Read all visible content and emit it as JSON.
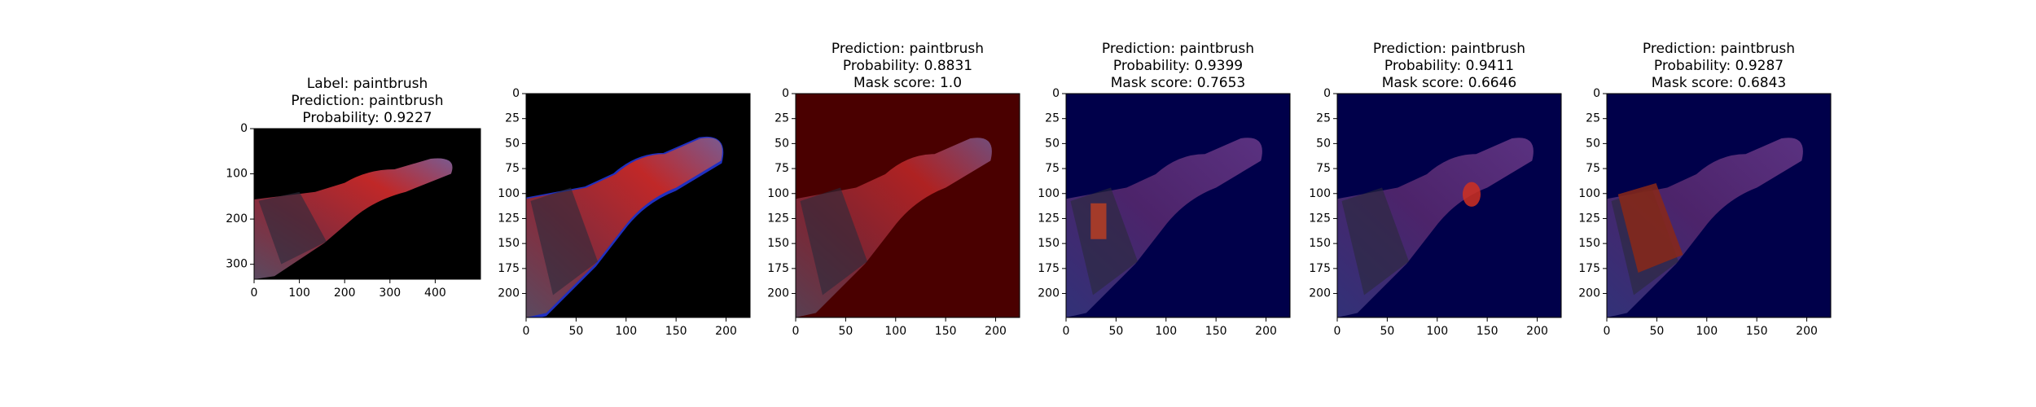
{
  "chart_data": [
    {
      "type": "image",
      "title": [
        "Label: paintbrush",
        "Prediction: paintbrush",
        "Probability: 0.9227"
      ],
      "xlim": [
        0,
        500
      ],
      "ylim": [
        333,
        0
      ],
      "xticks": [
        0,
        100,
        200,
        300,
        400
      ],
      "yticks": [
        0,
        100,
        200,
        300
      ]
    },
    {
      "type": "image",
      "xlim": [
        0,
        224
      ],
      "ylim": [
        224,
        0
      ],
      "xticks": [
        0,
        50,
        100,
        150,
        200
      ],
      "yticks": [
        0,
        25,
        50,
        75,
        100,
        125,
        150,
        175,
        200
      ]
    },
    {
      "type": "image",
      "title": [
        "Prediction: paintbrush",
        "Probability: 0.8831",
        "Mask score: 1.0"
      ],
      "xlim": [
        0,
        224
      ],
      "ylim": [
        224,
        0
      ],
      "xticks": [
        0,
        50,
        100,
        150,
        200
      ],
      "yticks": [
        0,
        25,
        50,
        75,
        100,
        125,
        150,
        175,
        200
      ]
    },
    {
      "type": "image",
      "title": [
        "Prediction: paintbrush",
        "Probability: 0.9399",
        "Mask score: 0.7653"
      ],
      "xlim": [
        0,
        224
      ],
      "ylim": [
        224,
        0
      ],
      "xticks": [
        0,
        50,
        100,
        150,
        200
      ],
      "yticks": [
        0,
        25,
        50,
        75,
        100,
        125,
        150,
        175,
        200
      ]
    },
    {
      "type": "image",
      "title": [
        "Prediction: paintbrush",
        "Probability: 0.9411",
        "Mask score: 0.6646"
      ],
      "xlim": [
        0,
        224
      ],
      "ylim": [
        224,
        0
      ],
      "xticks": [
        0,
        50,
        100,
        150,
        200
      ],
      "yticks": [
        0,
        25,
        50,
        75,
        100,
        125,
        150,
        175,
        200
      ]
    },
    {
      "type": "image",
      "title": [
        "Prediction: paintbrush",
        "Probability: 0.9287",
        "Mask score: 0.6843"
      ],
      "xlim": [
        0,
        224
      ],
      "ylim": [
        224,
        0
      ],
      "xticks": [
        0,
        50,
        100,
        150,
        200
      ],
      "yticks": [
        0,
        25,
        50,
        75,
        100,
        125,
        150,
        175,
        200
      ]
    }
  ]
}
